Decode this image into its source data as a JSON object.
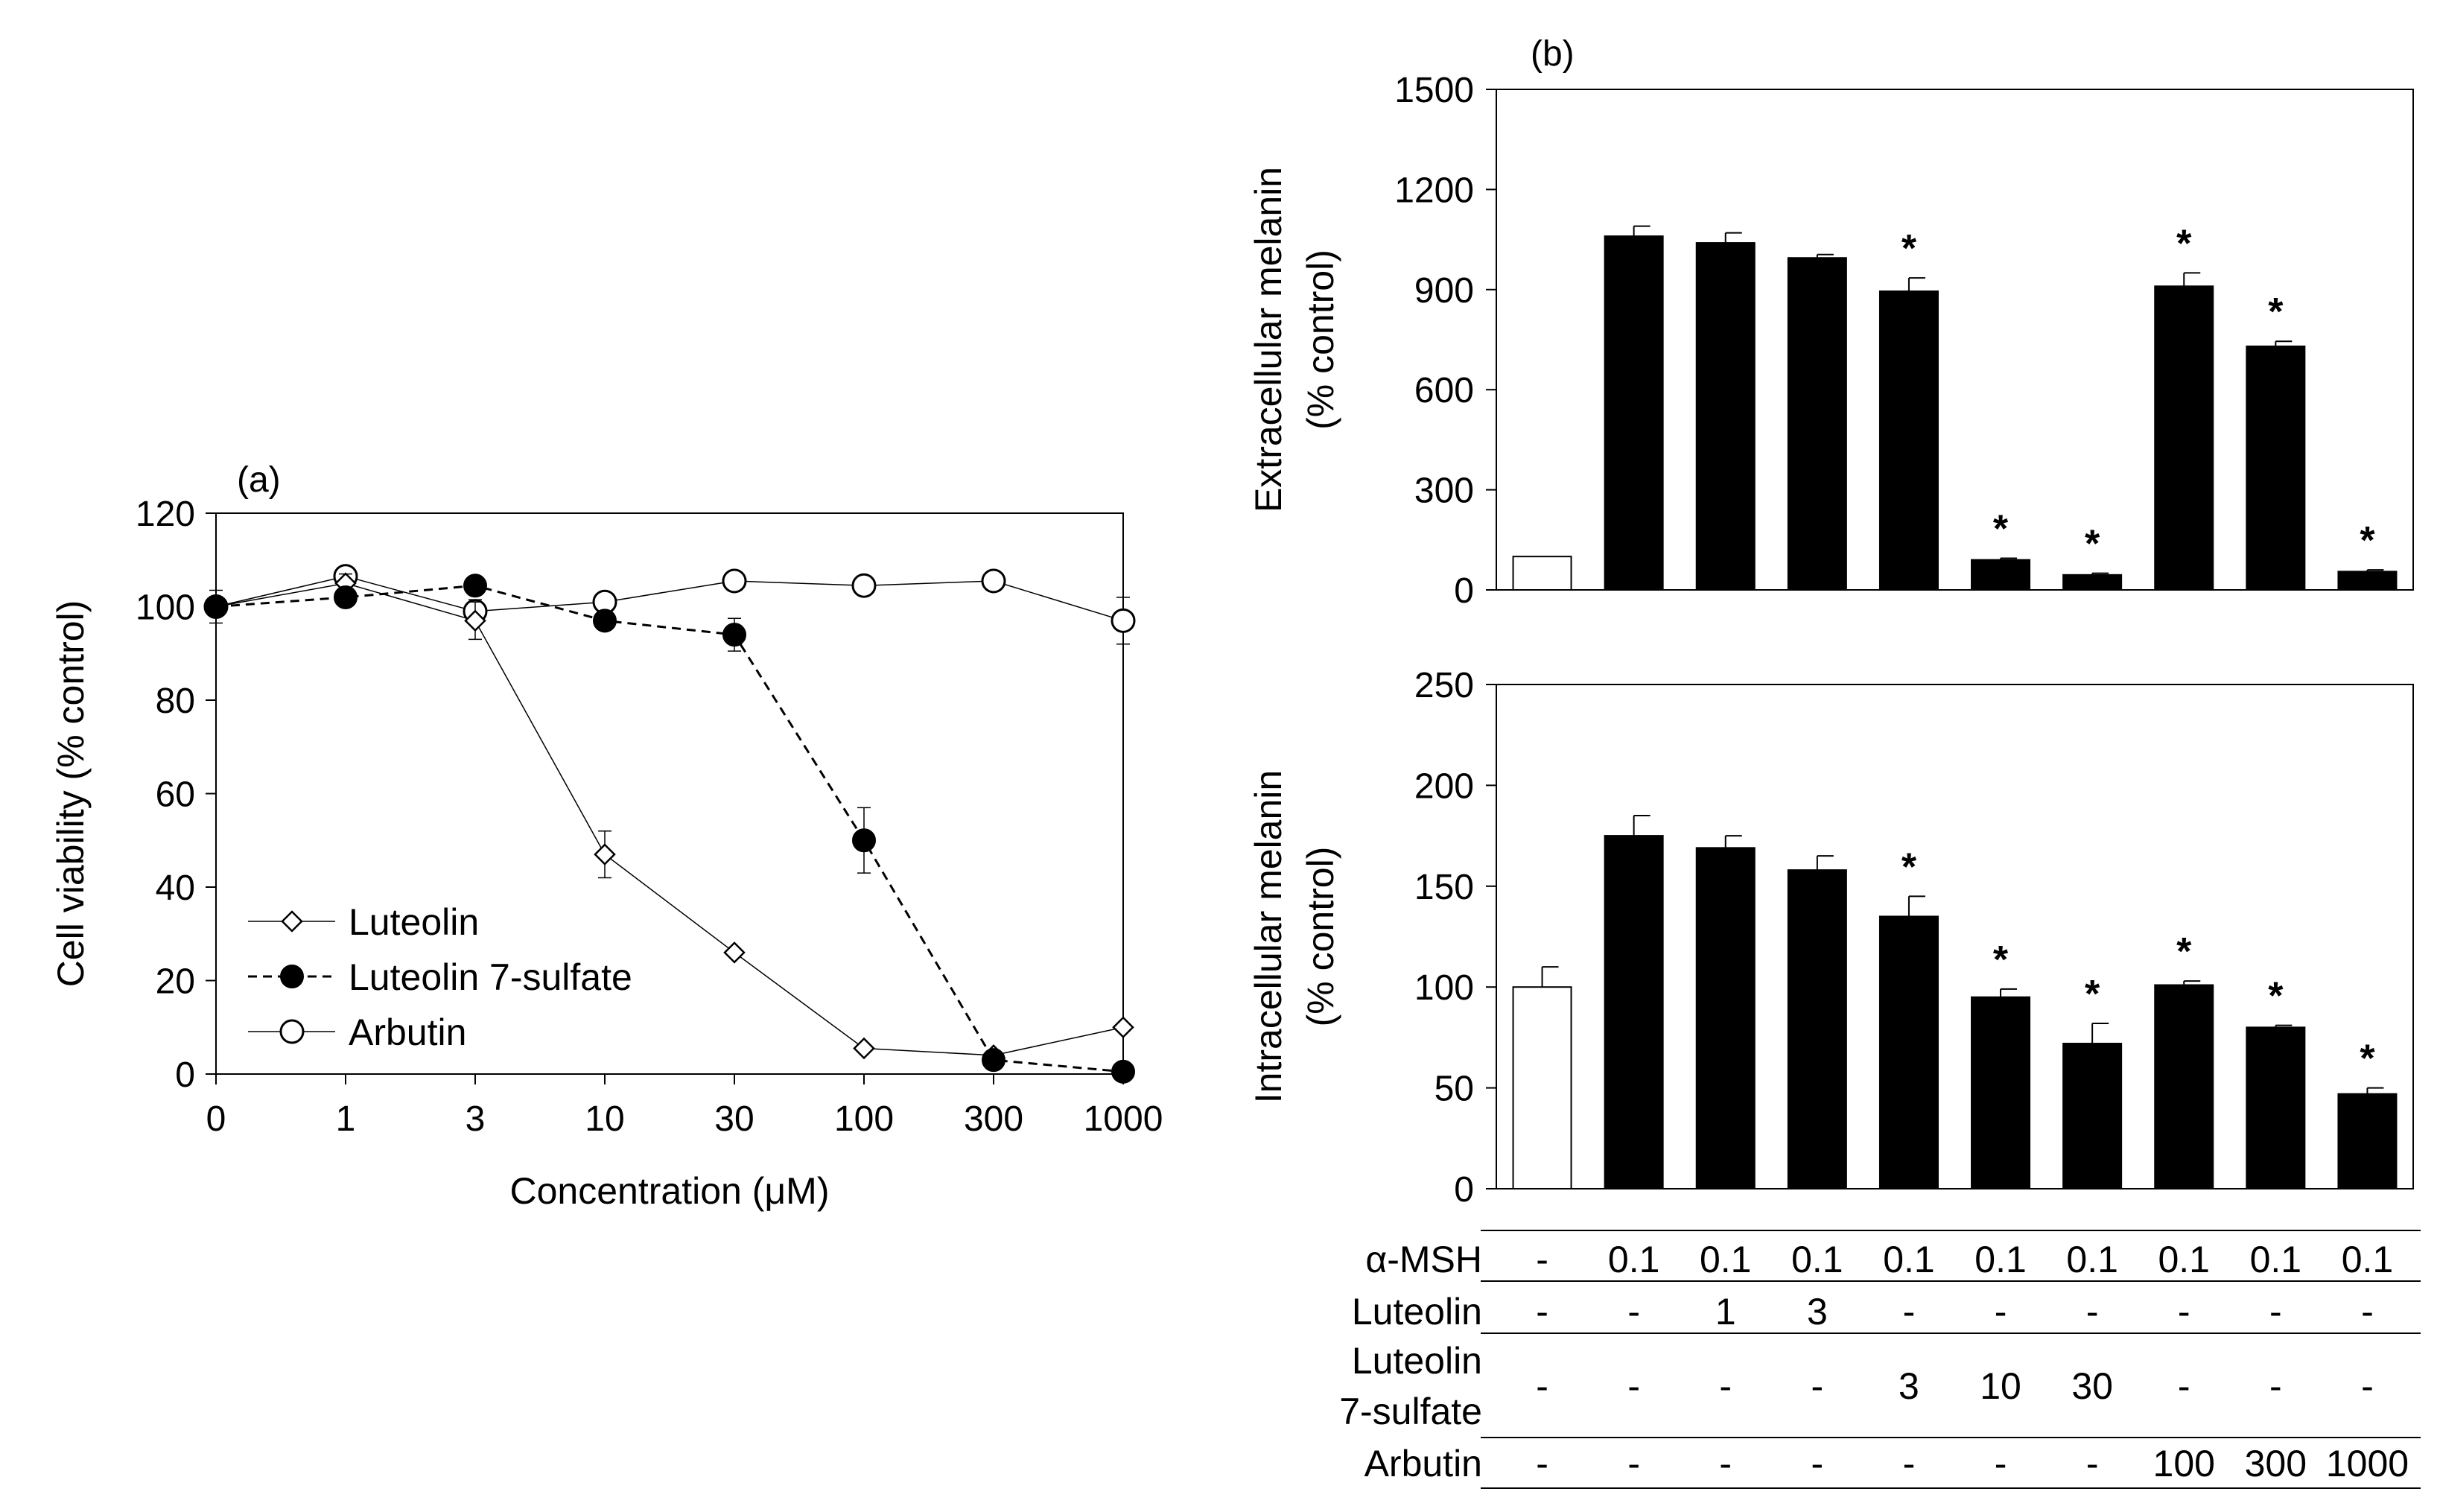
{
  "chart_data": [
    {
      "panel": "(a)",
      "type": "line",
      "categories": [
        "0",
        "1",
        "3",
        "10",
        "30",
        "100",
        "300",
        "1000"
      ],
      "xlabel": "Concentration (μM)",
      "ylabel": "Cell viability (% control)",
      "ylim": [
        0,
        120
      ],
      "yticks": [
        "0",
        "20",
        "40",
        "60",
        "80",
        "100",
        "120"
      ],
      "legend_position": "bottom-left",
      "series": [
        {
          "name": "Luteolin",
          "marker": "open-diamond",
          "line": "solid",
          "values": [
            100,
            105,
            97,
            47,
            26,
            5.5,
            4,
            10
          ],
          "errors": [
            1.5,
            2,
            4,
            5,
            1,
            1,
            1,
            1
          ]
        },
        {
          "name": "Luteolin 7-sulfate",
          "marker": "filled-circle",
          "line": "dashed",
          "values": [
            100,
            102,
            104.5,
            97,
            94,
            50,
            3,
            0.5
          ],
          "errors": [
            1.5,
            1.5,
            1.5,
            1.5,
            3.5,
            7,
            1,
            0.5
          ]
        },
        {
          "name": "Arbutin",
          "marker": "open-circle",
          "line": "solid",
          "values": [
            100,
            106.5,
            99,
            101,
            105.5,
            104.5,
            105.5,
            97
          ],
          "errors": [
            3.5,
            1.5,
            2.5,
            1.5,
            1,
            1,
            1,
            5
          ]
        }
      ]
    },
    {
      "panel": "(b)",
      "type": "bar",
      "ylabel_line1": "Extracellular melanin",
      "ylabel_line2": "(% control)",
      "ylim": [
        0,
        1500
      ],
      "yticks": [
        "0",
        "300",
        "600",
        "900",
        "1200",
        "1500"
      ],
      "values": [
        100,
        1060,
        1040,
        995,
        895,
        90,
        45,
        910,
        730,
        55
      ],
      "errors": [
        0,
        30,
        30,
        10,
        40,
        5,
        5,
        40,
        15,
        5
      ],
      "significant": [
        "",
        "",
        "",
        "",
        "*",
        "*",
        "*",
        "*",
        "*",
        "*"
      ],
      "bar_colors": [
        "#ffffff",
        "#000000",
        "#000000",
        "#000000",
        "#000000",
        "#000000",
        "#000000",
        "#000000",
        "#000000",
        "#000000"
      ]
    },
    {
      "type": "bar",
      "ylabel_line1": "Intracellular melanin",
      "ylabel_line2": "(% control)",
      "ylim": [
        0,
        250
      ],
      "yticks": [
        "0",
        "50",
        "100",
        "150",
        "200",
        "250"
      ],
      "values": [
        100,
        175,
        169,
        158,
        135,
        95,
        72,
        101,
        80,
        47
      ],
      "errors": [
        10,
        10,
        6,
        7,
        10,
        4,
        10,
        2,
        1,
        3
      ],
      "significant": [
        "",
        "",
        "",
        "",
        "*",
        "*",
        "*",
        "*",
        "*",
        "*"
      ],
      "bar_colors": [
        "#ffffff",
        "#000000",
        "#000000",
        "#000000",
        "#000000",
        "#000000",
        "#000000",
        "#000000",
        "#000000",
        "#000000"
      ]
    }
  ],
  "treatment_table": {
    "rows": [
      {
        "label_lines": [
          "α-MSH"
        ],
        "cells": [
          "-",
          "0.1",
          "0.1",
          "0.1",
          "0.1",
          "0.1",
          "0.1",
          "0.1",
          "0.1",
          "0.1"
        ]
      },
      {
        "label_lines": [
          "Luteolin"
        ],
        "cells": [
          "-",
          "-",
          "1",
          "3",
          "-",
          "-",
          "-",
          "-",
          "-",
          "-"
        ]
      },
      {
        "label_lines": [
          "Luteolin",
          "7-sulfate"
        ],
        "cells": [
          "-",
          "-",
          "-",
          "-",
          "3",
          "10",
          "30",
          "-",
          "-",
          "-"
        ]
      },
      {
        "label_lines": [
          "Arbutin"
        ],
        "cells": [
          "-",
          "-",
          "-",
          "-",
          "-",
          "-",
          "-",
          "100",
          "300",
          "1000"
        ]
      }
    ]
  }
}
